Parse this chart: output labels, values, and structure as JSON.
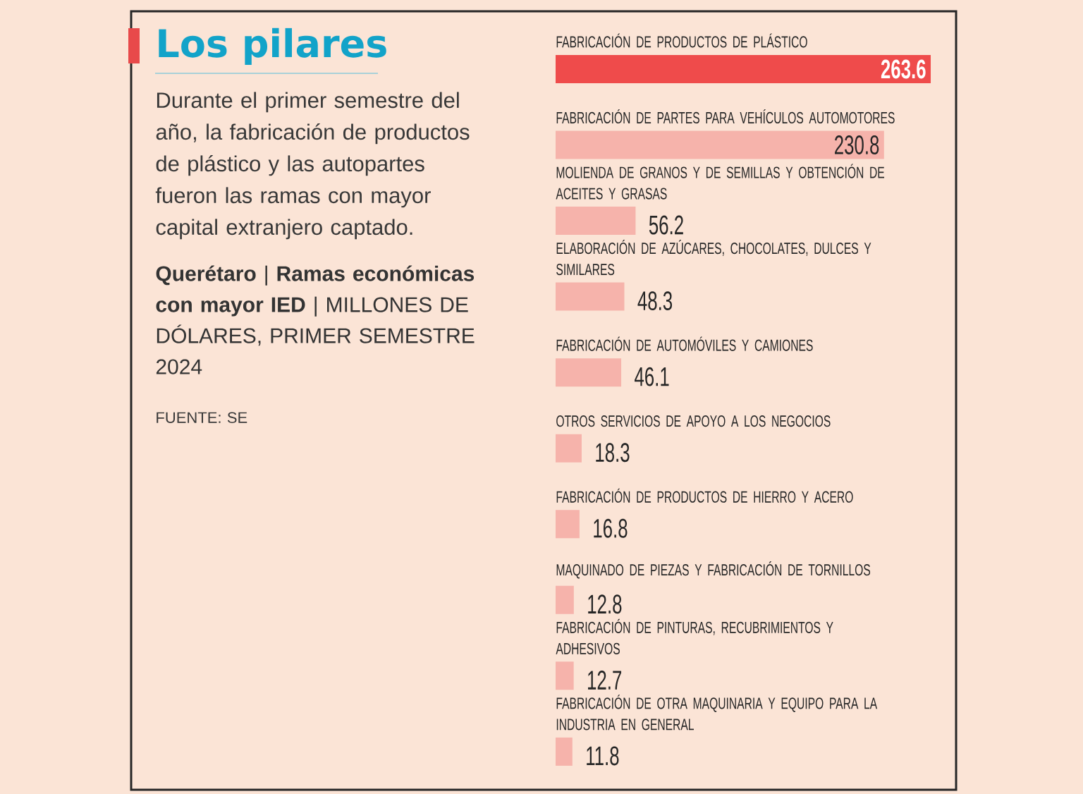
{
  "chart_data": {
    "type": "bar",
    "orientation": "horizontal",
    "data_labels": true,
    "title": "Los pilares",
    "subtitle": "**Querétaro** | **Ramas económicas con mayor IED** | MILLONES DE DÓLARES, PRIMER SEMESTRE 2024",
    "annotations": [
      "Durante el primer semestre del año, la fabricación de productos de plástico y las autopartes fueron las ramas con mayor capital extranjero captado.",
      "FUENTE: SE"
    ],
    "categories": [
      "FABRICACIÓN DE PRODUCTOS DE PLÁSTICO",
      "FABRICACIÓN DE PARTES PARA VEHÍCULOS AUTOMOTORES",
      "MOLIENDA DE GRANOS Y DE SEMILLAS Y OBTENCIÓN DE ACEITES Y GRASAS",
      "ELABORACIÓN DE AZÚCARES, CHOCOLATES, DULCES Y SIMILARES",
      "FABRICACIÓN DE AUTOMÓVILES Y CAMIONES",
      "OTROS SERVICIOS DE APOYO A LOS NEGOCIOS",
      "FABRICACIÓN DE PRODUCTOS DE HIERRO Y ACERO",
      "MAQUINADO DE PIEZAS Y FABRICACIÓN DE TORNILLOS",
      "FABRICACIÓN DE PINTURAS, RECUBRIMIENTOS Y ADHESIVOS",
      "FABRICACIÓN DE OTRA MAQUINARIA Y EQUIPO PARA LA INDUSTRIA EN GENERAL"
    ],
    "values": [
      263.6,
      230.8,
      56.2,
      48.3,
      46.1,
      18.3,
      16.8,
      12.8,
      12.7,
      11.8
    ],
    "colors": [
      "#ef4b4b",
      "#f6b3ab",
      "#f6b3ab",
      "#f6b3ab",
      "#f6b3ab",
      "#f6b3ab",
      "#f6b3ab",
      "#f6b3ab",
      "#f6b3ab",
      "#f6b3ab"
    ]
  }
}
